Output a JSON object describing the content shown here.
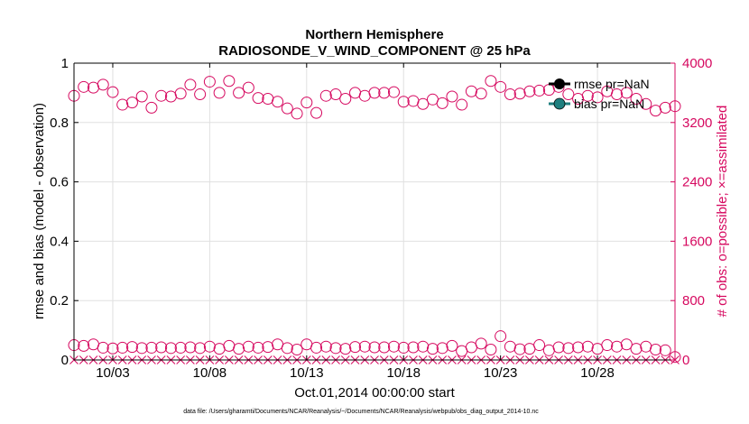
{
  "chart_data": {
    "type": "scatter",
    "title": "Northern Hemisphere",
    "subtitle": "RADIOSONDE_V_WIND_COMPONENT @ 25 hPa",
    "xlabel": "Oct.01,2014 00:00:00 start",
    "ylabel_left": "rmse and bias (model - observation)",
    "ylabel_right": "# of obs: o=possible; ×=assimilated",
    "x_ticks": [
      "10/03",
      "10/08",
      "10/13",
      "10/18",
      "10/23",
      "10/28"
    ],
    "x_tick_days": [
      3,
      8,
      13,
      18,
      23,
      28
    ],
    "xlim": [
      1,
      32
    ],
    "ylim_left": [
      0,
      1
    ],
    "ylim_right": [
      0,
      4000
    ],
    "y_ticks_left": [
      "0",
      "0.2",
      "0.4",
      "0.6",
      "0.8",
      "1"
    ],
    "y_ticks_right": [
      "0",
      "800",
      "1600",
      "2400",
      "3200",
      "4000"
    ],
    "legend": [
      "rmse pr=NaN",
      "bias pr=NaN"
    ],
    "footer": "data file: /Users/gharamti/Documents/NCAR/Reanalysis/~/Documents/NCAR/Reanalysis/webpub/obs_diag_output_2014-10.nc",
    "colors": {
      "obs": "#d6085f",
      "rmse": "#000000",
      "bias": "#1f7f7f",
      "axis": "#000000",
      "grid": "#e0e0e0"
    },
    "series": [
      {
        "name": "possible (upper)",
        "time": [
          1.0,
          1.5,
          2.0,
          2.5,
          3.0,
          3.5,
          4.0,
          4.5,
          5.0,
          5.5,
          6.0,
          6.5,
          7.0,
          7.5,
          8.0,
          8.5,
          9.0,
          9.5,
          10.0,
          10.5,
          11.0,
          11.5,
          12.0,
          12.5,
          13.0,
          13.5,
          14.0,
          14.5,
          15.0,
          15.5,
          16.0,
          16.5,
          17.0,
          17.5,
          18.0,
          18.5,
          19.0,
          19.5,
          20.0,
          20.5,
          21.0,
          21.5,
          22.0,
          22.5,
          23.0,
          23.5,
          24.0,
          24.5,
          25.0,
          25.5,
          26.0,
          26.5,
          27.0,
          27.5,
          28.0,
          28.5,
          29.0,
          29.5,
          30.0,
          30.5,
          31.0,
          31.5,
          32.0
        ],
        "count": [
          3560,
          3680,
          3670,
          3710,
          3610,
          3440,
          3470,
          3550,
          3400,
          3560,
          3550,
          3590,
          3710,
          3580,
          3750,
          3600,
          3760,
          3600,
          3670,
          3530,
          3520,
          3480,
          3390,
          3320,
          3470,
          3330,
          3560,
          3580,
          3520,
          3600,
          3560,
          3600,
          3600,
          3610,
          3480,
          3490,
          3450,
          3510,
          3460,
          3550,
          3440,
          3620,
          3590,
          3760,
          3680,
          3580,
          3590,
          3620,
          3630,
          3640,
          3680,
          3580,
          3520,
          3560,
          3540,
          3620,
          3580,
          3600,
          3520,
          3450,
          3360,
          3400,
          3420
        ]
      },
      {
        "name": "possible (lower)",
        "time": [
          1.0,
          1.5,
          2.0,
          2.5,
          3.0,
          3.5,
          4.0,
          4.5,
          5.0,
          5.5,
          6.0,
          6.5,
          7.0,
          7.5,
          8.0,
          8.5,
          9.0,
          9.5,
          10.0,
          10.5,
          11.0,
          11.5,
          12.0,
          12.5,
          13.0,
          13.5,
          14.0,
          14.5,
          15.0,
          15.5,
          16.0,
          16.5,
          17.0,
          17.5,
          18.0,
          18.5,
          19.0,
          19.5,
          20.0,
          20.5,
          21.0,
          21.5,
          22.0,
          22.5,
          23.0,
          23.5,
          24.0,
          24.5,
          25.0,
          25.5,
          26.0,
          26.5,
          27.0,
          27.5,
          28.0,
          28.5,
          29.0,
          29.5,
          30.0,
          30.5,
          31.0,
          31.5,
          32.0
        ],
        "count": [
          200,
          190,
          210,
          165,
          155,
          165,
          175,
          160,
          165,
          170,
          160,
          165,
          170,
          160,
          180,
          150,
          190,
          150,
          180,
          165,
          175,
          210,
          160,
          140,
          210,
          165,
          180,
          160,
          150,
          175,
          180,
          170,
          170,
          180,
          165,
          170,
          180,
          150,
          160,
          190,
          120,
          170,
          220,
          140,
          320,
          180,
          145,
          150,
          200,
          130,
          170,
          160,
          170,
          180,
          150,
          200,
          180,
          210,
          150,
          180,
          140,
          130,
          40
        ]
      },
      {
        "name": "assimilated",
        "time": [
          1.0,
          1.5,
          2.0,
          2.5,
          3.0,
          3.5,
          4.0,
          4.5,
          5.0,
          5.5,
          6.0,
          6.5,
          7.0,
          7.5,
          8.0,
          8.5,
          9.0,
          9.5,
          10.0,
          10.5,
          11.0,
          11.5,
          12.0,
          12.5,
          13.0,
          13.5,
          14.0,
          14.5,
          15.0,
          15.5,
          16.0,
          16.5,
          17.0,
          17.5,
          18.0,
          18.5,
          19.0,
          19.5,
          20.0,
          20.5,
          21.0,
          21.5,
          22.0,
          22.5,
          23.0,
          23.5,
          24.0,
          24.5,
          25.0,
          25.5,
          26.0,
          26.5,
          27.0,
          27.5,
          28.0,
          28.5,
          29.0,
          29.5,
          30.0,
          30.5,
          31.0,
          31.5,
          32.0
        ],
        "count": [
          0,
          0,
          0,
          0,
          0,
          0,
          0,
          0,
          0,
          0,
          0,
          0,
          0,
          0,
          0,
          0,
          0,
          0,
          0,
          0,
          0,
          0,
          0,
          0,
          0,
          0,
          0,
          0,
          0,
          0,
          0,
          0,
          0,
          0,
          0,
          0,
          0,
          0,
          0,
          0,
          0,
          0,
          0,
          0,
          0,
          0,
          0,
          0,
          0,
          0,
          0,
          0,
          0,
          0,
          0,
          0,
          0,
          0,
          0,
          0,
          0,
          0,
          0
        ]
      }
    ]
  }
}
